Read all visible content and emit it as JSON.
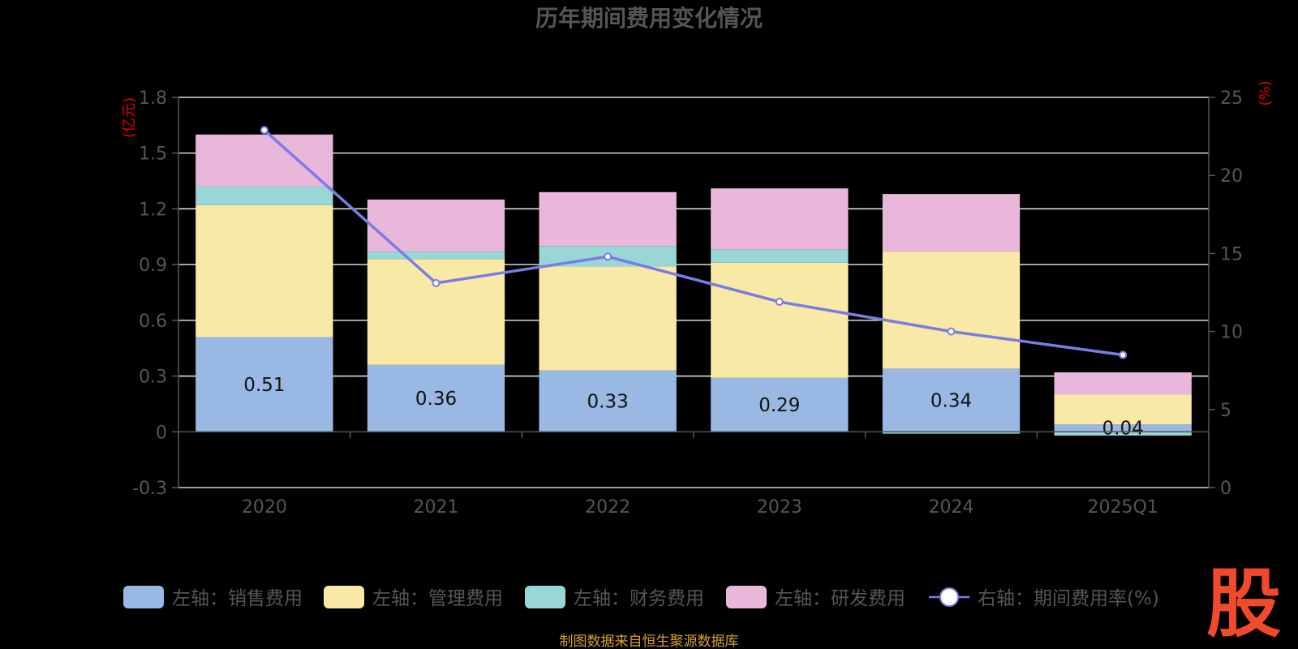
{
  "title": "历年期间费用变化情况",
  "left_unit": "(亿元)",
  "right_unit": "(%)",
  "source": "制图数据来自恒生聚源数据库",
  "logo_text": "股",
  "colors": {
    "sales": "#9ab8e4",
    "admin": "#f9e9a7",
    "finance": "#99d6d6",
    "rnd": "#e8b7d9",
    "line": "#7b7be6"
  },
  "legend": [
    {
      "label": "左轴：销售费用",
      "series": "sales"
    },
    {
      "label": "左轴：管理费用",
      "series": "admin"
    },
    {
      "label": "左轴：财务费用",
      "series": "finance"
    },
    {
      "label": "左轴：研发费用",
      "series": "rnd"
    },
    {
      "label": "右轴：期间费用率(%)",
      "series": "rate"
    }
  ],
  "chart_data": {
    "type": "bar",
    "stacked": true,
    "categories": [
      "2020",
      "2021",
      "2022",
      "2023",
      "2024",
      "2025Q1"
    ],
    "series": [
      {
        "name": "左轴：销售费用",
        "key": "sales",
        "axis": "left",
        "values": [
          0.51,
          0.36,
          0.33,
          0.29,
          0.34,
          0.04
        ]
      },
      {
        "name": "左轴：管理费用",
        "key": "admin",
        "axis": "left",
        "values": [
          0.71,
          0.57,
          0.56,
          0.62,
          0.63,
          0.16
        ]
      },
      {
        "name": "左轴：财务费用",
        "key": "finance",
        "axis": "left",
        "values": [
          0.1,
          0.04,
          0.11,
          0.07,
          -0.01,
          -0.02
        ]
      },
      {
        "name": "左轴：研发费用",
        "key": "rnd",
        "axis": "left",
        "values": [
          0.28,
          0.28,
          0.29,
          0.33,
          0.31,
          0.12
        ]
      },
      {
        "name": "右轴：期间费用率(%)",
        "key": "rate",
        "axis": "right",
        "type": "line",
        "values": [
          22.9,
          13.1,
          14.8,
          11.9,
          10.0,
          8.5
        ]
      }
    ],
    "data_labels": [
      "0.51",
      "0.36",
      "0.33",
      "0.29",
      "0.34",
      "0.04"
    ],
    "left_axis": {
      "min": -0.3,
      "max": 1.8,
      "ticks": [
        "-0.3",
        "0",
        "0.3",
        "0.6",
        "0.9",
        "1.2",
        "1.5",
        "1.8"
      ]
    },
    "right_axis": {
      "min": 0,
      "max": 25,
      "ticks": [
        "0",
        "5",
        "10",
        "15",
        "20",
        "25"
      ]
    },
    "grid": true,
    "legend_position": "bottom"
  }
}
